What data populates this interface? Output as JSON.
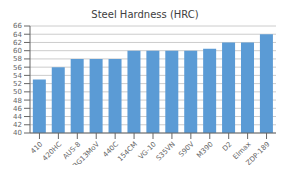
{
  "chart_data": {
    "type": "bar",
    "title": "Steel Hardness (HRC)",
    "categories": [
      "410",
      "420HC",
      "AUS-8",
      "BG13MoV",
      "440C",
      "154CM",
      "VG-10",
      "S35VN",
      "S90V",
      "M390",
      "D2",
      "Elmax",
      "ZDP-189"
    ],
    "values": [
      53,
      56,
      58,
      58,
      58,
      60,
      60,
      60,
      60,
      60.5,
      62,
      62,
      64
    ],
    "color": "#5B9BD5",
    "ylim": [
      40,
      66
    ],
    "yticks": [
      40,
      42,
      44,
      46,
      48,
      50,
      52,
      54,
      56,
      58,
      60,
      62,
      64,
      66
    ],
    "grid": true
  }
}
